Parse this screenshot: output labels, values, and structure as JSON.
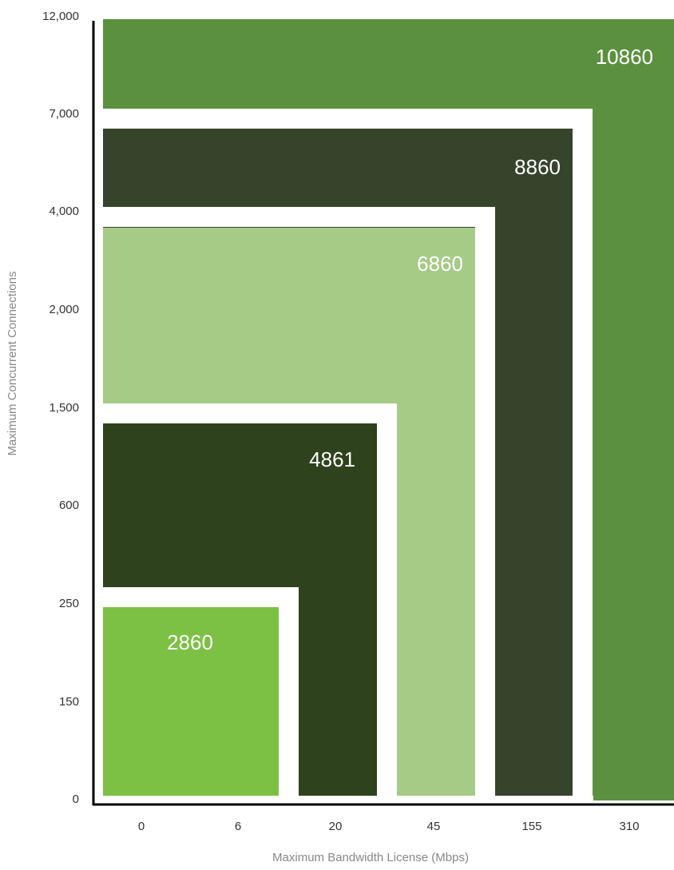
{
  "chart_data": {
    "type": "bar",
    "title": "",
    "xlabel": "Maximum Bandwidth License (Mbps)",
    "ylabel": "Maximum Concurrent Connections",
    "x_ticks": [
      "0",
      "6",
      "20",
      "45",
      "155",
      "310"
    ],
    "y_ticks": [
      "0",
      "150",
      "250",
      "600",
      "1,500",
      "2,000",
      "4,000",
      "7,000",
      "12,000"
    ],
    "grid": false,
    "legend": "none",
    "series": [
      {
        "name": "10860",
        "max_bandwidth_mbps": 310,
        "max_connections": 12000,
        "color": "#5b913e"
      },
      {
        "name": "8860",
        "max_bandwidth_mbps": 155,
        "max_connections": 7000,
        "color": "#36442c"
      },
      {
        "name": "6860",
        "max_bandwidth_mbps": 45,
        "max_connections": 4000,
        "color": "#a5cb86"
      },
      {
        "name": "4861",
        "max_bandwidth_mbps": 20,
        "max_connections": 1500,
        "color": "#2e431d"
      },
      {
        "name": "2860",
        "max_bandwidth_mbps": 6,
        "max_connections": 250,
        "color": "#7cc044"
      }
    ]
  }
}
